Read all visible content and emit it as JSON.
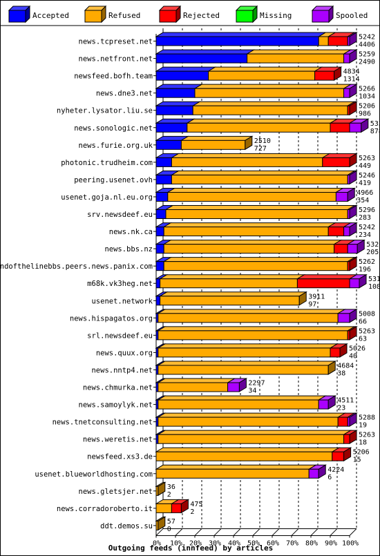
{
  "chart_data": {
    "type": "bar",
    "orientation": "horizontal",
    "stacked": true,
    "title": "Outgoing feeds (innfeed) by articles",
    "legend": [
      {
        "name": "Accepted",
        "color": "#0000ff"
      },
      {
        "name": "Refused",
        "color": "#ffaa00"
      },
      {
        "name": "Rejected",
        "color": "#ff0000"
      },
      {
        "name": "Missing",
        "color": "#00ff00"
      },
      {
        "name": "Spooled",
        "color": "#aa00ff"
      }
    ],
    "legend_position": "top",
    "x_ticks": [
      "0%",
      "10%",
      "20%",
      "30%",
      "40%",
      "50%",
      "60%",
      "70%",
      "80%",
      "90%",
      "100%"
    ],
    "xlim": [
      0,
      100
    ],
    "gridlines": "vertical-dashed",
    "rows": [
      {
        "label": "news.tcpreset.net",
        "total": "5242",
        "accepted": "4406",
        "pct": [
          84,
          5,
          10,
          0,
          1
        ]
      },
      {
        "label": "news.netfront.net",
        "total": "5259",
        "accepted": "2490",
        "pct": [
          47,
          50,
          0,
          0,
          3
        ]
      },
      {
        "label": "newsfeed.bofh.team",
        "total": "4834",
        "accepted": "1314",
        "pct": [
          27,
          55,
          10,
          0,
          0
        ]
      },
      {
        "label": "news.dne3.net",
        "total": "5266",
        "accepted": "1034",
        "pct": [
          20,
          77,
          0,
          0,
          3
        ]
      },
      {
        "label": "nyheter.lysator.liu.se",
        "total": "5206",
        "accepted": "986",
        "pct": [
          19,
          80,
          1,
          0,
          0
        ]
      },
      {
        "label": "news.sonologic.net",
        "total": "5333",
        "accepted": "878",
        "pct": [
          16,
          74,
          10,
          0,
          6
        ]
      },
      {
        "label": "news.furie.org.uk",
        "total": "2510",
        "accepted": "727",
        "pct": [
          13,
          33,
          0,
          0,
          0
        ]
      },
      {
        "label": "photonic.trudheim.com",
        "total": "5263",
        "accepted": "449",
        "pct": [
          8,
          78,
          14,
          0,
          0
        ]
      },
      {
        "label": "peering.usenet.ovh",
        "total": "5246",
        "accepted": "419",
        "pct": [
          8,
          91,
          0,
          0,
          1
        ]
      },
      {
        "label": "usenet.goja.nl.eu.org",
        "total": "4966",
        "accepted": "354",
        "pct": [
          6,
          87,
          0,
          0,
          6
        ]
      },
      {
        "label": "srv.newsdeef.eu",
        "total": "5296",
        "accepted": "283",
        "pct": [
          5,
          94,
          0,
          0,
          1
        ]
      },
      {
        "label": "news.nk.ca",
        "total": "5242",
        "accepted": "234",
        "pct": [
          4,
          85,
          8,
          0,
          3
        ]
      },
      {
        "label": "news.bbs.nz",
        "total": "5320",
        "accepted": "205",
        "pct": [
          4,
          88,
          7,
          0,
          5
        ]
      },
      {
        "label": "endofthelinebbs.peers.news.panix.com",
        "total": "5262",
        "accepted": "196",
        "pct": [
          4,
          95,
          1,
          0,
          0
        ]
      },
      {
        "label": "m68k.vk3heg.net",
        "total": "5310",
        "accepted": "108",
        "pct": [
          2,
          71,
          27,
          0,
          5
        ]
      },
      {
        "label": "usenet.network",
        "total": "3911",
        "accepted": "97",
        "pct": [
          2,
          72,
          0,
          0,
          0
        ]
      },
      {
        "label": "news.hispagatos.org",
        "total": "5008",
        "accepted": "66",
        "pct": [
          1,
          93,
          0,
          0,
          6
        ]
      },
      {
        "label": "srl.newsdeef.eu",
        "total": "5263",
        "accepted": "63",
        "pct": [
          1,
          98,
          1,
          0,
          0
        ]
      },
      {
        "label": "news.quux.org",
        "total": "5026",
        "accepted": "40",
        "pct": [
          1,
          89,
          5,
          0,
          0
        ]
      },
      {
        "label": "news.nntp4.net",
        "total": "4684",
        "accepted": "38",
        "pct": [
          1,
          88,
          0,
          0,
          0
        ]
      },
      {
        "label": "news.chmurka.net",
        "total": "2297",
        "accepted": "34",
        "pct": [
          1,
          36,
          0,
          0,
          6
        ]
      },
      {
        "label": "news.samoylyk.net",
        "total": "4511",
        "accepted": "23",
        "pct": [
          1,
          83,
          0,
          0,
          5
        ]
      },
      {
        "label": "news.tnetconsulting.net",
        "total": "5288",
        "accepted": "19",
        "pct": [
          1,
          93,
          5,
          0,
          1
        ]
      },
      {
        "label": "news.weretis.net",
        "total": "5263",
        "accepted": "18",
        "pct": [
          1,
          96,
          3,
          0,
          0
        ]
      },
      {
        "label": "newsfeed.xs3.de",
        "total": "5206",
        "accepted": "15",
        "pct": [
          0,
          91,
          6,
          0,
          0
        ]
      },
      {
        "label": "usenet.blueworldhosting.com",
        "total": "4224",
        "accepted": "6",
        "pct": [
          0,
          79,
          0,
          0,
          5
        ]
      },
      {
        "label": "news.gletsjer.net",
        "total": "36",
        "accepted": "2",
        "pct": [
          0,
          1,
          0,
          0,
          0
        ]
      },
      {
        "label": "news.corradoroberto.it",
        "total": "475",
        "accepted": "2",
        "pct": [
          0,
          8,
          5,
          0,
          0
        ]
      },
      {
        "label": "ddt.demos.su",
        "total": "57",
        "accepted": "0",
        "pct": [
          0,
          1,
          0,
          0,
          0
        ]
      }
    ]
  }
}
